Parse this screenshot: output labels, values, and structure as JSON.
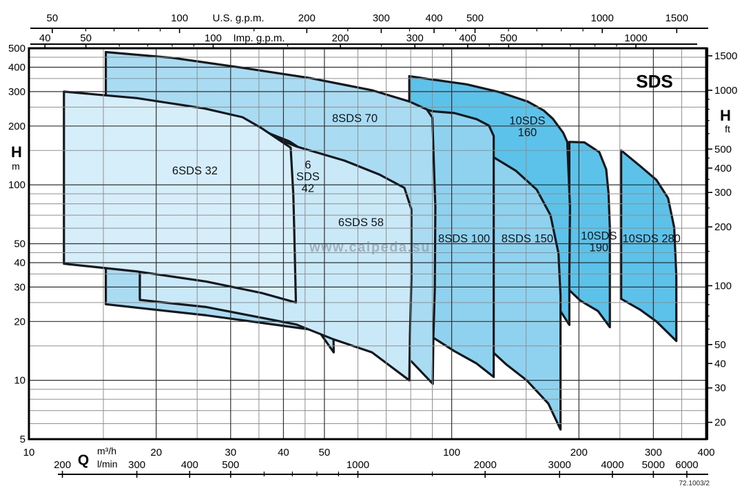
{
  "annotations": {
    "title": "SDS",
    "watermark": "www.calpeda.su",
    "code": "72.1003/2"
  },
  "chart_data": {
    "type": "area",
    "title": "SDS",
    "xlabel": "Q",
    "ylabel_left": "H (m)",
    "ylabel_right": "H (ft)",
    "xlim_m3h": [
      10,
      400
    ],
    "ylim_m": [
      5,
      500
    ],
    "grid": "log-log",
    "legend_position": "labels-inside-regions",
    "axes": {
      "top_us": {
        "label": "U.S. g.p.m.",
        "labeled": [
          50,
          100,
          200,
          300,
          400,
          500,
          1000,
          1500
        ],
        "minor": [
          60,
          70,
          80,
          90,
          150,
          250,
          350,
          450,
          600,
          700,
          800,
          900
        ]
      },
      "top_imp": {
        "label": "Imp. g.p.m.",
        "labeled": [
          40,
          50,
          100,
          200,
          300,
          400,
          500,
          1000
        ],
        "minor": [
          60,
          70,
          80,
          90,
          150,
          250,
          350,
          450,
          600,
          700,
          800,
          900
        ]
      },
      "left_m": {
        "label": "H",
        "unit": "m",
        "ticks": [
          500,
          400,
          300,
          200,
          100,
          50,
          40,
          30,
          20,
          10,
          5
        ]
      },
      "right_ft": {
        "label": "H",
        "unit": "ft",
        "labeled": [
          1500,
          1000,
          500,
          400,
          300,
          200,
          100,
          50,
          40,
          30,
          20
        ],
        "minor": [
          60,
          70,
          80,
          90,
          150,
          250,
          350,
          450,
          600,
          700,
          800,
          900
        ]
      },
      "bottom_m3h": {
        "label": "Q",
        "unit": "m³/h",
        "ticks": [
          10,
          20,
          30,
          40,
          50,
          100,
          200,
          300,
          400
        ]
      },
      "bottom_lmin": {
        "unit": "l/min",
        "labeled": [
          200,
          300,
          400,
          500,
          1000,
          2000,
          3000,
          4000,
          5000,
          6000
        ],
        "minor": [
          600,
          700,
          800,
          900,
          1500
        ]
      }
    },
    "gridlines": {
      "h_major": [
        10,
        20,
        30,
        40,
        50,
        100,
        200,
        300,
        400
      ],
      "h_minor": [
        6,
        7,
        8,
        9,
        15,
        25,
        35,
        45,
        60,
        70,
        80,
        90,
        150,
        250,
        350,
        450
      ],
      "q_major": [
        20,
        30,
        40,
        50,
        100,
        200,
        300
      ],
      "q_minor": [
        15,
        25,
        35,
        45,
        60,
        70,
        80,
        90,
        150,
        250,
        350
      ]
    },
    "regions": [
      {
        "name": "10SDS 280",
        "label_lines": [
          "10SDS 280"
        ],
        "label_q": 297,
        "label_h": 53,
        "color": "#5cc2e9",
        "points": [
          [
            251.7,
            150
          ],
          [
            279,
            125
          ],
          [
            305,
            106
          ],
          [
            325,
            85.5
          ],
          [
            336,
            60.5
          ],
          [
            340,
            34.2
          ],
          [
            340,
            22.6
          ],
          [
            340,
            15.9
          ],
          [
            305,
            20
          ],
          [
            279,
            23
          ],
          [
            251.7,
            26.1
          ]
        ]
      },
      {
        "name": "10SDS 190",
        "label_lines": [
          "10SDS",
          "190"
        ],
        "label_q": 223,
        "label_h": 51,
        "color": "#5cc2e9",
        "points": [
          [
            189.8,
            166
          ],
          [
            206,
            165
          ],
          [
            223.5,
            147
          ],
          [
            232,
            120
          ],
          [
            235,
            90.5
          ],
          [
            236.7,
            60.6
          ],
          [
            236.7,
            34.2
          ],
          [
            236.7,
            18.7
          ],
          [
            222,
            22.6
          ],
          [
            201.9,
            25.5
          ],
          [
            189.8,
            28.9
          ]
        ]
      },
      {
        "name": "10SDS 160",
        "label_lines": [
          "10SDS",
          "160"
        ],
        "label_q": 151,
        "label_h": 198,
        "color": "#5cc2e9",
        "points": [
          [
            79.4,
            360
          ],
          [
            89.9,
            346
          ],
          [
            108.5,
            327
          ],
          [
            129.9,
            298
          ],
          [
            151.2,
            267
          ],
          [
            165.2,
            240
          ],
          [
            173.5,
            218
          ],
          [
            183.5,
            185
          ],
          [
            187.7,
            166
          ],
          [
            190.5,
            77
          ],
          [
            189.8,
            34.2
          ],
          [
            189.8,
            19.2
          ],
          [
            180.9,
            22.6
          ],
          [
            141.9,
            27.2
          ],
          [
            101.5,
            33.5
          ],
          [
            79.4,
            38.5
          ]
        ]
      },
      {
        "name": "8SDS 150",
        "label_lines": [
          "8SDS 150"
        ],
        "label_q": 151,
        "label_h": 53,
        "color": "#8fd2ef",
        "points": [
          [
            125.3,
            139
          ],
          [
            141.9,
            118
          ],
          [
            158.9,
            94.6
          ],
          [
            171.3,
            70
          ],
          [
            178.9,
            44.7
          ],
          [
            180.9,
            27.2
          ],
          [
            180.9,
            5.6
          ],
          [
            169.3,
            7.6
          ],
          [
            150.5,
            10
          ],
          [
            134.4,
            12.1
          ],
          [
            125.3,
            13.9
          ]
        ]
      },
      {
        "name": "8SDS 100",
        "label_lines": [
          "8SDS 100"
        ],
        "label_q": 107,
        "label_h": 53,
        "color": "#8fd2ef",
        "points": [
          [
            79.4,
            257
          ],
          [
            90.2,
            238
          ],
          [
            101.5,
            233
          ],
          [
            114.5,
            217
          ],
          [
            122.5,
            201
          ],
          [
            125.7,
            178
          ],
          [
            125.7,
            66
          ],
          [
            125.7,
            27
          ],
          [
            125.7,
            16.6
          ],
          [
            125.7,
            10.4
          ],
          [
            114.5,
            12.2
          ],
          [
            101.5,
            14.1
          ],
          [
            90.2,
            16.6
          ],
          [
            81,
            18
          ],
          [
            79.4,
            18.8
          ]
        ]
      },
      {
        "name": "8SDS 70",
        "label_lines": [
          "8SDS 70"
        ],
        "label_q": 59,
        "label_h": 218,
        "color": "#a9dcf3",
        "points": [
          [
            15.2,
            478
          ],
          [
            21.8,
            447
          ],
          [
            31.8,
            398
          ],
          [
            46.2,
            352
          ],
          [
            64.8,
            305
          ],
          [
            79.4,
            267
          ],
          [
            87.4,
            243
          ],
          [
            90,
            221
          ],
          [
            91.5,
            77
          ],
          [
            91.2,
            29.3
          ],
          [
            90.5,
            16.4
          ],
          [
            90.2,
            9.6
          ],
          [
            80.3,
            12.5
          ],
          [
            67.4,
            14.5
          ],
          [
            46.2,
            18.2
          ],
          [
            26.3,
            21.5
          ],
          [
            15.2,
            24.5
          ]
        ]
      },
      {
        "name": "6 SDS 42",
        "label_lines": [
          "6",
          "SDS",
          "42"
        ],
        "label_q": 45.7,
        "label_h": 110,
        "color": "#c2e6f7",
        "points": [
          [
            18.3,
            35.2
          ],
          [
            18.3,
            26.5
          ],
          [
            26.3,
            24.3
          ],
          [
            35.5,
            22.8
          ],
          [
            42.9,
            21.4
          ],
          [
            48,
            18.4
          ],
          [
            52.6,
            13.9
          ],
          [
            52.3,
            29.5
          ],
          [
            51.7,
            78
          ],
          [
            51.4,
            119
          ],
          [
            46.1,
            143
          ],
          [
            41.3,
            167
          ],
          [
            35.5,
            190
          ],
          [
            26.3,
            222
          ],
          [
            18.3,
            257
          ]
        ]
      },
      {
        "name": "6SDS 58",
        "label_lines": [
          "6SDS 58"
        ],
        "label_q": 61,
        "label_h": 64,
        "color": "#c9e9f8",
        "points": [
          [
            18.3,
            228
          ],
          [
            26.3,
            203
          ],
          [
            35.5,
            185
          ],
          [
            43,
            157
          ],
          [
            55.8,
            133
          ],
          [
            67.4,
            113
          ],
          [
            77.3,
            96.5
          ],
          [
            80.3,
            75
          ],
          [
            80.3,
            33
          ],
          [
            79.7,
            17.2
          ],
          [
            79.4,
            10
          ],
          [
            64.8,
            13.9
          ],
          [
            52.6,
            16.2
          ],
          [
            42.9,
            19.3
          ],
          [
            26.3,
            23.7
          ],
          [
            18.3,
            25.8
          ]
        ]
      },
      {
        "name": "6SDS 32",
        "label_lines": [
          "6SDS 32"
        ],
        "label_q": 24.7,
        "label_h": 118,
        "color": "#d6eefa",
        "points": [
          [
            12.1,
            300
          ],
          [
            18,
            278
          ],
          [
            26,
            246
          ],
          [
            32,
            222
          ],
          [
            35.5,
            195
          ],
          [
            41.6,
            155
          ],
          [
            42.2,
            90
          ],
          [
            42.4,
            60
          ],
          [
            42.8,
            25
          ],
          [
            35.5,
            28
          ],
          [
            26.3,
            32
          ],
          [
            18.1,
            36
          ],
          [
            12.1,
            39.5
          ]
        ]
      }
    ]
  }
}
